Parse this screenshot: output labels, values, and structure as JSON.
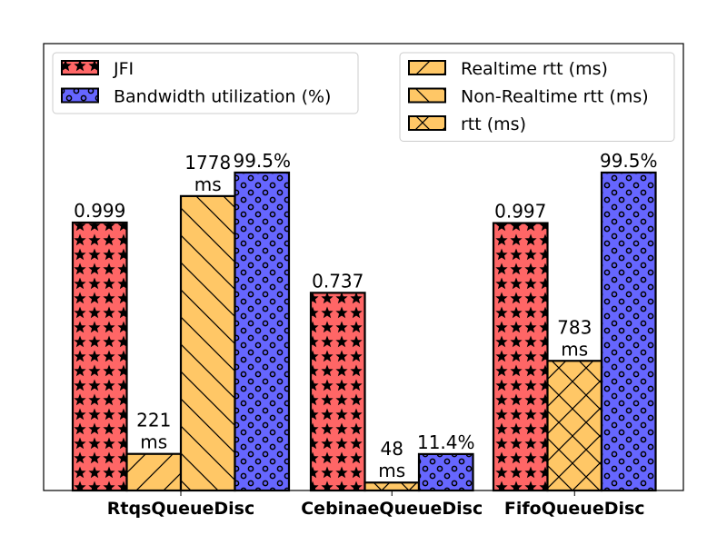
{
  "chart_data": {
    "type": "bar",
    "title": "",
    "xlabel": "",
    "ylabel": "",
    "categories": [
      "RtqsQueueDisc",
      "CebinaeQueueDisc",
      "FifoQueueDisc"
    ],
    "bars": [
      {
        "category": "RtqsQueueDisc",
        "series": "JFI",
        "value": 0.999,
        "label": "0.999"
      },
      {
        "category": "RtqsQueueDisc",
        "series": "Realtime rtt (ms)",
        "value": 221,
        "label": "221 ms"
      },
      {
        "category": "RtqsQueueDisc",
        "series": "Non-Realtime rtt (ms)",
        "value": 1778,
        "label": "1778 ms"
      },
      {
        "category": "RtqsQueueDisc",
        "series": "Bandwidth utilization (%)",
        "value": 99.5,
        "label": "99.5%"
      },
      {
        "category": "CebinaeQueueDisc",
        "series": "JFI",
        "value": 0.737,
        "label": "0.737"
      },
      {
        "category": "CebinaeQueueDisc",
        "series": "rtt (ms)",
        "value": 48,
        "label": "48 ms"
      },
      {
        "category": "CebinaeQueueDisc",
        "series": "Bandwidth utilization (%)",
        "value": 11.4,
        "label": "11.4%"
      },
      {
        "category": "FifoQueueDisc",
        "series": "JFI",
        "value": 0.997,
        "label": "0.997"
      },
      {
        "category": "FifoQueueDisc",
        "series": "rtt (ms)",
        "value": 783,
        "label": "783 ms"
      },
      {
        "category": "FifoQueueDisc",
        "series": "Bandwidth utilization (%)",
        "value": 99.5,
        "label": "99.5%"
      }
    ],
    "series": [
      {
        "name": "JFI",
        "color": "#ff6666",
        "hatch": "stars"
      },
      {
        "name": "Bandwidth utilization (%)",
        "color": "#6666ff",
        "hatch": "circles"
      },
      {
        "name": "Realtime rtt (ms)",
        "color": "#ffc766",
        "hatch": "forward-slash"
      },
      {
        "name": "Non-Realtime rtt (ms)",
        "color": "#ffc766",
        "hatch": "back-slash"
      },
      {
        "name": "rtt (ms)",
        "color": "#ffc766",
        "hatch": "cross"
      }
    ],
    "legends": [
      {
        "position": "top-left",
        "entries": [
          "JFI",
          "Bandwidth utilization (%)"
        ]
      },
      {
        "position": "top-right",
        "entries": [
          "Realtime rtt (ms)",
          "Non-Realtime rtt (ms)",
          "rtt (ms)"
        ]
      }
    ],
    "axis": {
      "y_ticks_visible": false,
      "grid": false
    }
  }
}
